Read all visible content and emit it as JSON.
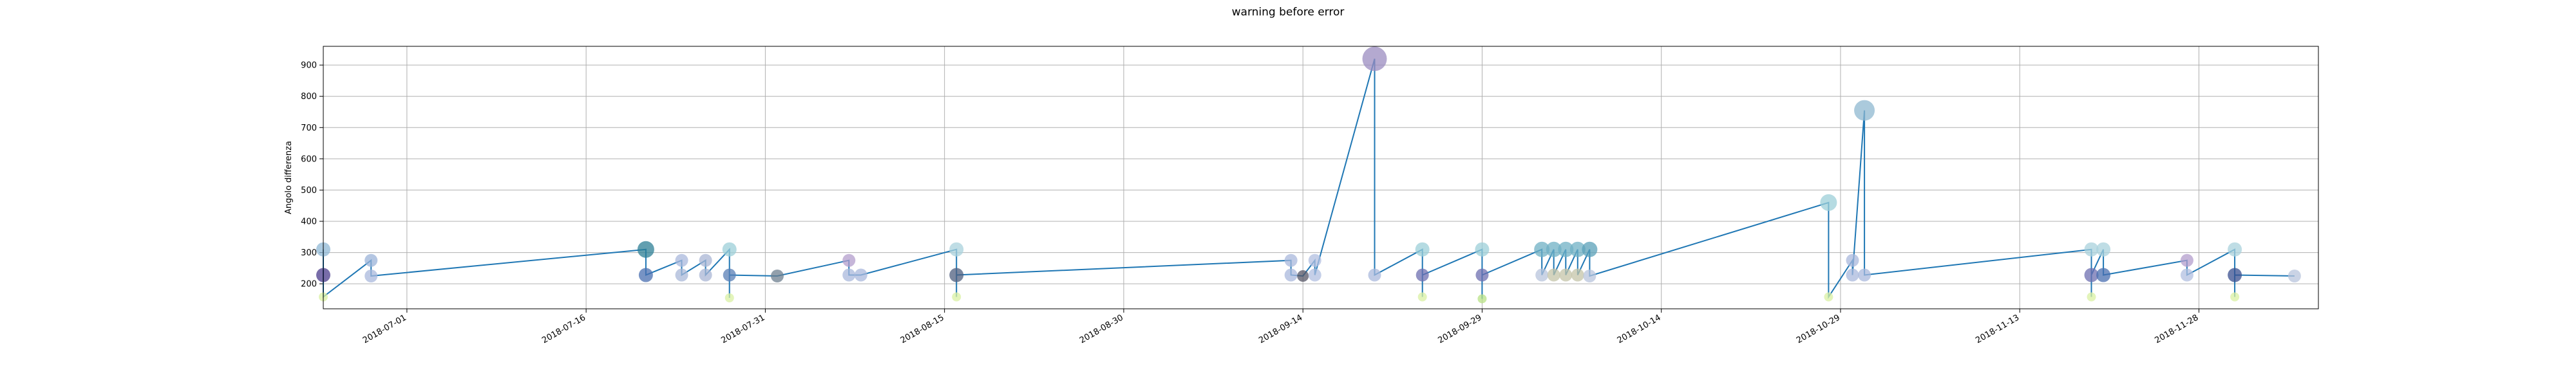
{
  "chart_data": {
    "type": "line",
    "title": "warning before error",
    "xlabel": "",
    "ylabel": "Angolo differenza",
    "xlim": [
      "2018-06-24",
      "2018-12-08"
    ],
    "ylim": [
      120,
      960
    ],
    "grid": true,
    "x_ticks": [
      "2018-07-01",
      "2018-07-16",
      "2018-07-31",
      "2018-08-15",
      "2018-08-30",
      "2018-09-14",
      "2018-09-29",
      "2018-10-14",
      "2018-10-29",
      "2018-11-13",
      "2018-11-28"
    ],
    "y_ticks": [
      200,
      300,
      400,
      500,
      600,
      700,
      800,
      900
    ],
    "line_color": "#1f77b4",
    "series": [
      {
        "values": [
          {
            "x": "2018-06-24",
            "y": 310,
            "size": 22,
            "color": "#8fb8d6"
          },
          {
            "x": "2018-06-24",
            "y": 228,
            "size": 22,
            "color": "#4b3c8c"
          },
          {
            "x": "2018-06-24",
            "y": 158,
            "size": 14,
            "color": "#d9f0a3"
          },
          {
            "x": "2018-06-28",
            "y": 275,
            "size": 20,
            "color": "#9bb3d8"
          },
          {
            "x": "2018-06-28",
            "y": 225,
            "size": 20,
            "color": "#a9b8dc"
          },
          {
            "x": "2018-07-21",
            "y": 310,
            "size": 26,
            "color": "#2e7f96"
          },
          {
            "x": "2018-07-21",
            "y": 228,
            "size": 22,
            "color": "#4a6fb0"
          },
          {
            "x": "2018-07-24",
            "y": 275,
            "size": 20,
            "color": "#a9b8dc"
          },
          {
            "x": "2018-07-24",
            "y": 228,
            "size": 20,
            "color": "#aab8d8"
          },
          {
            "x": "2018-07-26",
            "y": 275,
            "size": 20,
            "color": "#aab6d4"
          },
          {
            "x": "2018-07-26",
            "y": 228,
            "size": 20,
            "color": "#aab6d4"
          },
          {
            "x": "2018-07-28",
            "y": 310,
            "size": 22,
            "color": "#9ccfd8"
          },
          {
            "x": "2018-07-28",
            "y": 155,
            "size": 14,
            "color": "#d9f0a3"
          },
          {
            "x": "2018-07-28",
            "y": 228,
            "size": 20,
            "color": "#5a7fb5"
          },
          {
            "x": "2018-08-01",
            "y": 225,
            "size": 20,
            "color": "#6d7f8f"
          },
          {
            "x": "2018-08-07",
            "y": 275,
            "size": 20,
            "color": "#b39dcc"
          },
          {
            "x": "2018-08-07",
            "y": 228,
            "size": 20,
            "color": "#aab8dc"
          },
          {
            "x": "2018-08-08",
            "y": 228,
            "size": 20,
            "color": "#aab8dc"
          },
          {
            "x": "2018-08-16",
            "y": 310,
            "size": 22,
            "color": "#a9d2dc"
          },
          {
            "x": "2018-08-16",
            "y": 158,
            "size": 14,
            "color": "#d9f0a3"
          },
          {
            "x": "2018-08-16",
            "y": 228,
            "size": 22,
            "color": "#4f5f7f"
          },
          {
            "x": "2018-09-13",
            "y": 275,
            "size": 20,
            "color": "#a9b8dc"
          },
          {
            "x": "2018-09-13",
            "y": 228,
            "size": 20,
            "color": "#a9b8dc"
          },
          {
            "x": "2018-09-14",
            "y": 225,
            "size": 18,
            "color": "#555566"
          },
          {
            "x": "2018-09-15",
            "y": 275,
            "size": 20,
            "color": "#b1bfe0"
          },
          {
            "x": "2018-09-15",
            "y": 228,
            "size": 20,
            "color": "#b1bfe0"
          },
          {
            "x": "2018-09-20",
            "y": 920,
            "size": 38,
            "color": "#9b8cc0"
          },
          {
            "x": "2018-09-20",
            "y": 228,
            "size": 20,
            "color": "#aab8dc"
          },
          {
            "x": "2018-09-24",
            "y": 310,
            "size": 22,
            "color": "#9ccfd8"
          },
          {
            "x": "2018-09-24",
            "y": 158,
            "size": 14,
            "color": "#d9f0a3"
          },
          {
            "x": "2018-09-24",
            "y": 228,
            "size": 20,
            "color": "#6d6fb0"
          },
          {
            "x": "2018-09-29",
            "y": 310,
            "size": 22,
            "color": "#9ccfd8"
          },
          {
            "x": "2018-09-29",
            "y": 152,
            "size": 14,
            "color": "#b8e186"
          },
          {
            "x": "2018-09-29",
            "y": 228,
            "size": 20,
            "color": "#6d6fb0"
          },
          {
            "x": "2018-10-04",
            "y": 310,
            "size": 24,
            "color": "#6fb0c4"
          },
          {
            "x": "2018-10-04",
            "y": 228,
            "size": 20,
            "color": "#b8c4dc"
          },
          {
            "x": "2018-10-05",
            "y": 310,
            "size": 24,
            "color": "#6fb0c4"
          },
          {
            "x": "2018-10-05",
            "y": 228,
            "size": 20,
            "color": "#c4c4a8"
          },
          {
            "x": "2018-10-06",
            "y": 310,
            "size": 24,
            "color": "#6fb0c4"
          },
          {
            "x": "2018-10-06",
            "y": 228,
            "size": 20,
            "color": "#c4c4a8"
          },
          {
            "x": "2018-10-07",
            "y": 310,
            "size": 24,
            "color": "#6fb0c4"
          },
          {
            "x": "2018-10-07",
            "y": 228,
            "size": 20,
            "color": "#c4c4a8"
          },
          {
            "x": "2018-10-08",
            "y": 310,
            "size": 24,
            "color": "#5aa0b8"
          },
          {
            "x": "2018-10-08",
            "y": 225,
            "size": 20,
            "color": "#b8c4dc"
          },
          {
            "x": "2018-10-28",
            "y": 460,
            "size": 26,
            "color": "#9ccfd8"
          },
          {
            "x": "2018-10-28",
            "y": 158,
            "size": 14,
            "color": "#d9f0a3"
          },
          {
            "x": "2018-10-30",
            "y": 275,
            "size": 20,
            "color": "#aab8dc"
          },
          {
            "x": "2018-10-30",
            "y": 228,
            "size": 20,
            "color": "#aab8dc"
          },
          {
            "x": "2018-10-31",
            "y": 755,
            "size": 32,
            "color": "#8fb8d0"
          },
          {
            "x": "2018-10-31",
            "y": 228,
            "size": 20,
            "color": "#aab8dc"
          },
          {
            "x": "2018-11-19",
            "y": 310,
            "size": 22,
            "color": "#a9d2dc"
          },
          {
            "x": "2018-11-19",
            "y": 158,
            "size": 14,
            "color": "#d9f0a3"
          },
          {
            "x": "2018-11-19",
            "y": 228,
            "size": 22,
            "color": "#6d6fb0"
          },
          {
            "x": "2018-11-20",
            "y": 310,
            "size": 22,
            "color": "#a9d2dc"
          },
          {
            "x": "2018-11-20",
            "y": 228,
            "size": 22,
            "color": "#4a6fb0"
          },
          {
            "x": "2018-11-27",
            "y": 275,
            "size": 20,
            "color": "#b39dcc"
          },
          {
            "x": "2018-11-27",
            "y": 228,
            "size": 20,
            "color": "#b1bfe0"
          },
          {
            "x": "2018-12-01",
            "y": 310,
            "size": 22,
            "color": "#a9d2dc"
          },
          {
            "x": "2018-12-01",
            "y": 158,
            "size": 14,
            "color": "#d9f0a3"
          },
          {
            "x": "2018-12-01",
            "y": 228,
            "size": 22,
            "color": "#3a4f8f"
          },
          {
            "x": "2018-12-06",
            "y": 225,
            "size": 20,
            "color": "#b8c4dc"
          }
        ]
      }
    ]
  }
}
